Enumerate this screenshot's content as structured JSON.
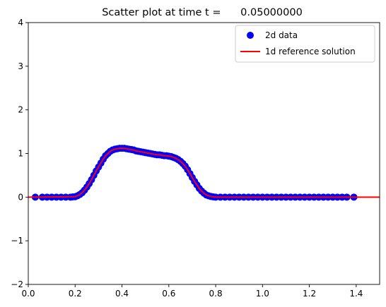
{
  "chart_data": {
    "type": "scatter",
    "title": "Scatter plot at time t =      0.05000000",
    "xlabel": "",
    "ylabel": "",
    "xlim": [
      0.0,
      1.5
    ],
    "ylim": [
      -2,
      4
    ],
    "x_ticks": [
      "0.0",
      "0.2",
      "0.4",
      "0.6",
      "0.8",
      "1.0",
      "1.2",
      "1.4"
    ],
    "y_ticks": [
      "-2",
      "-1",
      "0",
      "1",
      "2",
      "3",
      "4"
    ],
    "grid": false,
    "legend_position": "top-right",
    "series": [
      {
        "name": "2d data",
        "kind": "scatter",
        "color": "#0000ff",
        "x": [
          0.03,
          0.06,
          0.08,
          0.1,
          0.12,
          0.14,
          0.16,
          0.18,
          0.19,
          0.2,
          0.21,
          0.22,
          0.23,
          0.24,
          0.25,
          0.26,
          0.27,
          0.28,
          0.29,
          0.3,
          0.31,
          0.32,
          0.33,
          0.34,
          0.35,
          0.36,
          0.37,
          0.38,
          0.39,
          0.4,
          0.41,
          0.42,
          0.43,
          0.44,
          0.45,
          0.46,
          0.47,
          0.48,
          0.49,
          0.5,
          0.51,
          0.52,
          0.53,
          0.54,
          0.55,
          0.56,
          0.57,
          0.58,
          0.59,
          0.6,
          0.61,
          0.62,
          0.63,
          0.64,
          0.65,
          0.66,
          0.67,
          0.68,
          0.69,
          0.7,
          0.71,
          0.72,
          0.73,
          0.74,
          0.75,
          0.76,
          0.77,
          0.78,
          0.79,
          0.8,
          0.82,
          0.84,
          0.86,
          0.88,
          0.9,
          0.92,
          0.94,
          0.96,
          0.98,
          1.0,
          1.02,
          1.04,
          1.06,
          1.08,
          1.1,
          1.12,
          1.14,
          1.16,
          1.18,
          1.2,
          1.22,
          1.24,
          1.26,
          1.28,
          1.3,
          1.32,
          1.34,
          1.36,
          1.39
        ],
        "y": [
          0.0,
          0.0,
          0.0,
          0.0,
          0.0,
          0.0,
          0.0,
          0.0,
          0.005,
          0.01,
          0.03,
          0.06,
          0.1,
          0.16,
          0.23,
          0.31,
          0.4,
          0.5,
          0.6,
          0.69,
          0.78,
          0.87,
          0.95,
          1.0,
          1.05,
          1.08,
          1.1,
          1.11,
          1.12,
          1.12,
          1.12,
          1.11,
          1.1,
          1.09,
          1.08,
          1.06,
          1.05,
          1.04,
          1.03,
          1.02,
          1.01,
          1.0,
          0.99,
          0.98,
          0.97,
          0.97,
          0.96,
          0.95,
          0.95,
          0.94,
          0.93,
          0.91,
          0.89,
          0.86,
          0.82,
          0.77,
          0.71,
          0.63,
          0.54,
          0.45,
          0.36,
          0.28,
          0.2,
          0.14,
          0.09,
          0.05,
          0.03,
          0.015,
          0.005,
          0.0,
          0.0,
          0.0,
          0.0,
          0.0,
          0.0,
          0.0,
          0.0,
          0.0,
          0.0,
          0.0,
          0.0,
          0.0,
          0.0,
          0.0,
          0.0,
          0.0,
          0.0,
          0.0,
          0.0,
          0.0,
          0.0,
          0.0,
          0.0,
          0.0,
          0.0,
          0.0,
          0.0,
          0.0,
          0.0
        ]
      },
      {
        "name": "1d reference solution",
        "kind": "line",
        "color": "#ff0000",
        "x": [
          0.0,
          0.2,
          0.21,
          0.22,
          0.23,
          0.24,
          0.25,
          0.26,
          0.27,
          0.28,
          0.29,
          0.3,
          0.31,
          0.32,
          0.33,
          0.34,
          0.35,
          0.36,
          0.37,
          0.38,
          0.39,
          0.4,
          0.41,
          0.42,
          0.43,
          0.44,
          0.45,
          0.46,
          0.47,
          0.48,
          0.49,
          0.5,
          0.51,
          0.52,
          0.53,
          0.54,
          0.55,
          0.56,
          0.57,
          0.58,
          0.59,
          0.6,
          0.61,
          0.62,
          0.63,
          0.64,
          0.65,
          0.66,
          0.67,
          0.68,
          0.69,
          0.7,
          0.71,
          0.72,
          0.73,
          0.74,
          0.75,
          0.76,
          0.77,
          0.78,
          0.79,
          0.8,
          1.5
        ],
        "y": [
          0.0,
          0.01,
          0.03,
          0.06,
          0.1,
          0.16,
          0.23,
          0.31,
          0.4,
          0.5,
          0.6,
          0.69,
          0.78,
          0.87,
          0.95,
          1.0,
          1.05,
          1.08,
          1.1,
          1.11,
          1.12,
          1.12,
          1.12,
          1.11,
          1.1,
          1.09,
          1.08,
          1.06,
          1.05,
          1.04,
          1.03,
          1.02,
          1.01,
          1.0,
          0.99,
          0.98,
          0.97,
          0.97,
          0.96,
          0.95,
          0.95,
          0.94,
          0.93,
          0.91,
          0.89,
          0.86,
          0.82,
          0.77,
          0.71,
          0.63,
          0.54,
          0.45,
          0.36,
          0.28,
          0.2,
          0.14,
          0.09,
          0.05,
          0.03,
          0.015,
          0.005,
          0.0,
          0.0
        ]
      }
    ]
  }
}
